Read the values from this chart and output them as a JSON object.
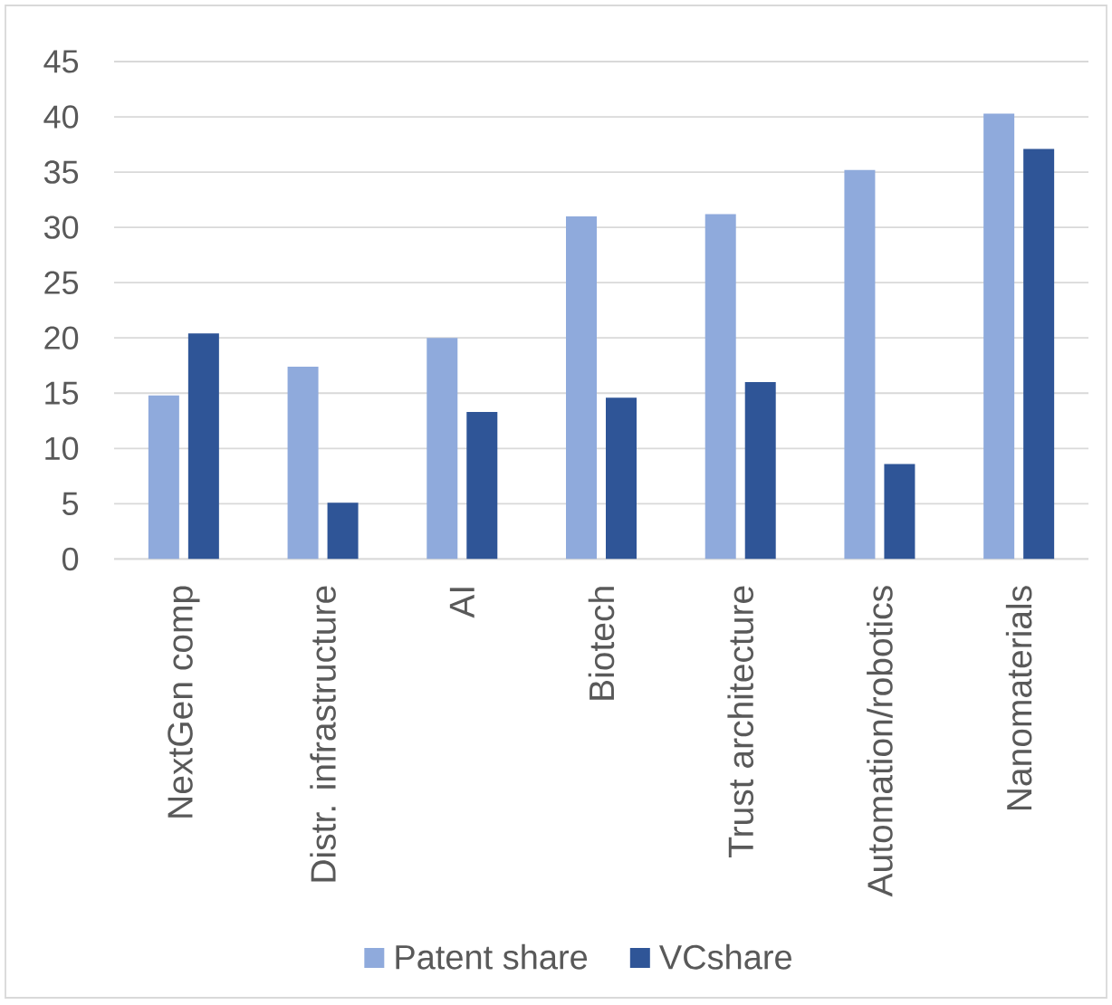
{
  "chart_data": {
    "type": "bar",
    "categories": [
      "NextGen comp",
      "Distr. infrastructure",
      "AI",
      "Biotech",
      "Trust architecture",
      "Automation/robotics",
      "Nanomaterials"
    ],
    "series": [
      {
        "name": "Patent share",
        "color": "#8faadc",
        "values": [
          14.8,
          17.4,
          20.0,
          31.0,
          31.2,
          35.2,
          40.3
        ]
      },
      {
        "name": "VCshare",
        "color": "#2f5597",
        "values": [
          20.4,
          5.1,
          13.3,
          14.6,
          16.0,
          8.6,
          37.1
        ]
      }
    ],
    "ylim": [
      0,
      45
    ],
    "yticks": [
      0,
      5,
      10,
      15,
      20,
      25,
      30,
      35,
      40,
      45
    ],
    "grid": "y",
    "legend": "bottom"
  }
}
